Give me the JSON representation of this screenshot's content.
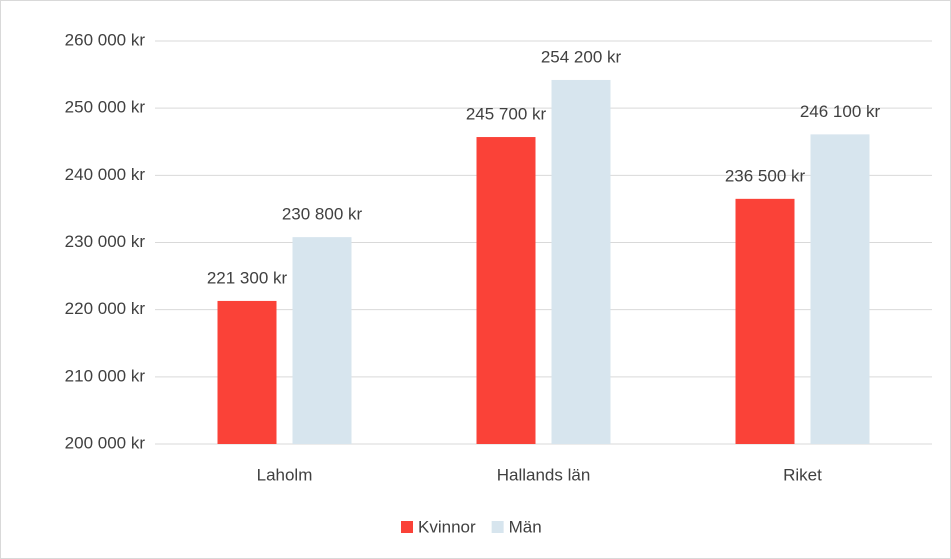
{
  "chart_data": {
    "type": "bar",
    "categories": [
      "Laholm",
      "Hallands län",
      "Riket"
    ],
    "series": [
      {
        "name": "Kvinnor",
        "color": "#fa4238",
        "values": [
          221300,
          245700,
          236500
        ],
        "value_labels": [
          "221 300 kr",
          "245 700 kr",
          "236 500 kr"
        ]
      },
      {
        "name": "Män",
        "color": "#d7e5ee",
        "values": [
          230800,
          254200,
          246100
        ],
        "value_labels": [
          "230 800 kr",
          "254 200 kr",
          "246 100 kr"
        ]
      }
    ],
    "ylim": [
      200000,
      260000
    ],
    "yticks": [
      {
        "value": 200000,
        "label": "200 000 kr"
      },
      {
        "value": 210000,
        "label": "210 000 kr"
      },
      {
        "value": 220000,
        "label": "220 000 kr"
      },
      {
        "value": 230000,
        "label": "230 000 kr"
      },
      {
        "value": 240000,
        "label": "240 000 kr"
      },
      {
        "value": 250000,
        "label": "250 000 kr"
      },
      {
        "value": 260000,
        "label": "260 000 kr"
      }
    ],
    "grid": true,
    "legend": "bottom"
  }
}
